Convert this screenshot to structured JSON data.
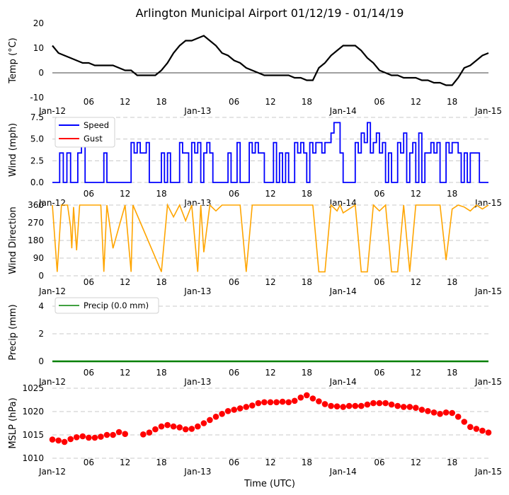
{
  "title": "Arlington Municipal Airport 01/12/19 - 01/14/19",
  "xlabel": "Time (UTC)",
  "x_ticks": [
    "Jan-12",
    "06",
    "12",
    "18",
    "Jan-13",
    "06",
    "12",
    "18",
    "Jan-14",
    "06",
    "12",
    "18",
    "Jan-15"
  ],
  "x_range_hours": [
    0,
    72
  ],
  "panels": {
    "temp": {
      "ylabel": "Temp ($^\\circ$C)",
      "ylabel_display": "Temp (°C)",
      "ylim": [
        -10,
        20
      ],
      "yticks": [
        "20",
        "10",
        "0",
        "-10"
      ],
      "color": "#000000"
    },
    "wind": {
      "ylabel": "Wind (mph)",
      "ylim": [
        -0.5,
        7.5
      ],
      "yticks": [
        "7.5",
        "5.0",
        "2.5",
        "0.0"
      ],
      "legend": [
        "Speed",
        "Gust"
      ],
      "colors": [
        "#0000ff",
        "#ff0000"
      ]
    },
    "dir": {
      "ylabel": "Wind Direction",
      "ylim": [
        0,
        360
      ],
      "yticks": [
        "360",
        "270",
        "180",
        "90",
        "0"
      ],
      "color": "#ffa500"
    },
    "precip": {
      "ylabel": "Precip (mm)",
      "ylim": [
        -0.3,
        4.5
      ],
      "yticks": [
        "4",
        "2",
        "0"
      ],
      "legend": [
        "Precip (0.0 mm)"
      ],
      "color": "#008000"
    },
    "mslp": {
      "ylabel": "MSLP (hPa)",
      "ylim": [
        1010,
        1025
      ],
      "yticks": [
        "1025",
        "1020",
        "1015",
        "1010"
      ],
      "color": "#ff0000"
    }
  },
  "chart_data": [
    {
      "type": "line",
      "name": "Temperature",
      "unit": "C",
      "x": [
        0,
        1,
        2,
        3,
        4,
        5,
        6,
        7,
        8,
        9,
        10,
        11,
        12,
        13,
        14,
        15,
        16,
        17,
        18,
        19,
        20,
        21,
        22,
        23,
        24,
        25,
        26,
        27,
        28,
        29,
        30,
        31,
        32,
        33,
        34,
        35,
        36,
        37,
        38,
        39,
        40,
        41,
        42,
        43,
        44,
        45,
        46,
        47,
        48,
        49,
        50,
        51,
        52,
        53,
        54,
        55,
        56,
        57,
        58,
        59,
        60,
        61,
        62,
        63,
        64,
        65,
        66,
        67,
        68,
        69,
        70,
        71,
        72
      ],
      "y": [
        11,
        8,
        7,
        6,
        5,
        4,
        4,
        3,
        3,
        3,
        3,
        2,
        1,
        1,
        -1,
        -1,
        -1,
        -1,
        1,
        4,
        8,
        11,
        13,
        13,
        14,
        15,
        13,
        11,
        8,
        7,
        5,
        4,
        2,
        1,
        0,
        -1,
        -1,
        -1,
        -1,
        -1,
        -2,
        -2,
        -3,
        -3,
        2,
        4,
        7,
        9,
        11,
        11,
        11,
        9,
        6,
        4,
        1,
        0,
        -1,
        -1,
        -2,
        -2,
        -2,
        -3,
        -3,
        -4,
        -4,
        -5,
        -5,
        -2,
        2,
        3,
        5,
        7,
        8
      ]
    },
    {
      "type": "line",
      "name": "Wind Speed",
      "unit": "mph",
      "x": [
        0,
        0.6,
        1.2,
        1.8,
        2.4,
        3,
        3.6,
        4.2,
        4.8,
        5.4,
        6,
        7,
        8,
        8.5,
        9,
        10,
        11,
        12,
        12.5,
        13,
        13.5,
        14,
        14.5,
        15,
        15.5,
        16,
        16.5,
        17,
        18,
        18.5,
        19,
        19.5,
        20,
        21,
        21.5,
        22,
        22.5,
        23,
        23.5,
        24,
        24.5,
        25,
        25.5,
        26,
        26.5,
        27,
        28,
        29,
        29.5,
        30,
        30.5,
        31,
        31.5,
        32,
        32.5,
        33,
        33.5,
        34,
        35,
        36,
        36.5,
        37,
        37.5,
        38,
        38.5,
        39,
        39.5,
        40,
        40.5,
        41,
        41.5,
        42,
        42.5,
        43,
        43.5,
        44,
        44.5,
        45,
        45.5,
        46,
        46.5,
        47,
        47.5,
        48,
        48.5,
        49,
        49.5,
        50,
        50.5,
        51,
        51.5,
        52,
        52.5,
        53,
        53.5,
        54,
        54.5,
        55,
        55.5,
        56,
        56.5,
        57,
        57.5,
        58,
        58.5,
        59,
        59.5,
        60,
        60.5,
        61,
        61.5,
        62,
        62.5,
        63,
        63.5,
        64,
        64.5,
        65,
        65.5,
        66,
        66.5,
        67,
        67.5,
        68,
        68.5,
        69,
        69.5,
        70,
        70.5,
        71,
        72
      ],
      "y": [
        0,
        0,
        3.4,
        0,
        3.4,
        0,
        0,
        3.4,
        4.6,
        0,
        0,
        0,
        0,
        3.4,
        0,
        0,
        0,
        0,
        0,
        4.6,
        3.4,
        4.6,
        3.4,
        3.4,
        4.6,
        0,
        0,
        0,
        3.4,
        0,
        3.4,
        0,
        0,
        4.6,
        3.4,
        3.4,
        0,
        4.6,
        3.4,
        4.6,
        0,
        3.4,
        4.6,
        3.4,
        0,
        0,
        0,
        3.4,
        0,
        0,
        4.6,
        0,
        0,
        0,
        4.6,
        3.4,
        4.6,
        3.4,
        0,
        0,
        4.6,
        0,
        3.4,
        0,
        3.4,
        0,
        0,
        4.6,
        3.4,
        4.6,
        3.4,
        0,
        4.6,
        3.4,
        4.6,
        4.6,
        3.4,
        4.6,
        4.6,
        5.7,
        6.9,
        6.9,
        3.4,
        0,
        0,
        0,
        0,
        4.6,
        3.4,
        5.7,
        4.6,
        6.9,
        3.4,
        4.6,
        5.7,
        3.4,
        4.6,
        0,
        3.4,
        0,
        0,
        4.6,
        3.4,
        5.7,
        0,
        3.4,
        4.6,
        0,
        5.7,
        0,
        3.4,
        3.4,
        4.6,
        3.4,
        4.6,
        0,
        0,
        4.6,
        3.4,
        4.6,
        4.6,
        3.4,
        0,
        3.4,
        0,
        3.4,
        3.4,
        3.4,
        0,
        0,
        0
      ]
    },
    {
      "type": "line",
      "name": "Wind Direction",
      "unit": "deg",
      "x": [
        0,
        0.8,
        1.5,
        2.5,
        3,
        3.2,
        3.5,
        4,
        4.5,
        5,
        8,
        8.5,
        9,
        10,
        12,
        13,
        13.3,
        18,
        19,
        19.5,
        20,
        21,
        22,
        23,
        24,
        24.5,
        25,
        26,
        27,
        28,
        30,
        31,
        32,
        33,
        34,
        35,
        36,
        40,
        40.2,
        42,
        43,
        44,
        45,
        46,
        47,
        47.5,
        48,
        49,
        50,
        51,
        52,
        53,
        54,
        55,
        56,
        57,
        58,
        59,
        60,
        61,
        62,
        63,
        64,
        65,
        66,
        67,
        68,
        69,
        70,
        71,
        72
      ],
      "y": [
        360,
        20,
        360,
        360,
        250,
        140,
        350,
        130,
        360,
        360,
        360,
        20,
        360,
        140,
        360,
        20,
        360,
        20,
        360,
        330,
        300,
        360,
        280,
        360,
        20,
        360,
        120,
        360,
        330,
        360,
        360,
        360,
        20,
        360,
        360,
        360,
        360,
        360,
        360,
        360,
        360,
        20,
        20,
        360,
        330,
        360,
        320,
        340,
        360,
        20,
        20,
        360,
        330,
        360,
        20,
        20,
        360,
        20,
        360,
        360,
        360,
        360,
        360,
        80,
        340,
        360,
        350,
        330,
        360,
        340,
        360
      ]
    },
    {
      "type": "line",
      "name": "Precip",
      "unit": "mm",
      "x": [
        0,
        72
      ],
      "y": [
        0,
        0
      ]
    },
    {
      "type": "scatter",
      "name": "MSLP",
      "unit": "hPa",
      "x": [
        0,
        1,
        2,
        3,
        4,
        5,
        6,
        7,
        8,
        9,
        10,
        11,
        12,
        13,
        15,
        16,
        17,
        18,
        19,
        20,
        21,
        22,
        23,
        24,
        25,
        26,
        27,
        28,
        29,
        30,
        31,
        32,
        33,
        34,
        35,
        36,
        37,
        38,
        39,
        40,
        41,
        42,
        43,
        44,
        45,
        46,
        47,
        48,
        49,
        50,
        51,
        52,
        53,
        54,
        55,
        56,
        57,
        58,
        59,
        60,
        61,
        62,
        63,
        64,
        65,
        66,
        67,
        68,
        69,
        70,
        71,
        72
      ],
      "y": [
        1014.0,
        1013.8,
        1013.5,
        1014.1,
        1014.5,
        1014.7,
        1014.4,
        1014.4,
        1014.6,
        1015.0,
        1015.0,
        1015.6,
        1015.2,
        null,
        1015.1,
        1015.5,
        1016.2,
        1016.8,
        1017.1,
        1016.8,
        1016.6,
        1016.2,
        1016.3,
        1016.8,
        1017.5,
        1018.2,
        1018.9,
        1019.5,
        1020.1,
        1020.4,
        1020.7,
        1021.0,
        1021.3,
        1021.8,
        1022.0,
        1022.0,
        1022.0,
        1022.1,
        1022.0,
        1022.3,
        1023.0,
        1023.5,
        1022.8,
        1022.2,
        1021.6,
        1021.2,
        1021.1,
        1021.0,
        1021.2,
        1021.2,
        1021.2,
        1021.5,
        1021.8,
        1021.8,
        1021.8,
        1021.5,
        1021.2,
        1021.0,
        1021.0,
        1020.8,
        1020.4,
        1020.1,
        1019.8,
        1019.5,
        1019.8,
        1019.7,
        1018.9,
        1017.8,
        1016.7,
        1016.3,
        1015.9,
        1015.5
      ]
    }
  ]
}
